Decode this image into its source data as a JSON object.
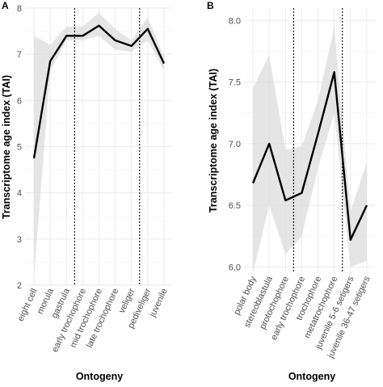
{
  "chart_data": [
    {
      "panel_label": "A",
      "type": "line",
      "xlabel": "Ontogeny",
      "ylabel": "Transcriptome age index (TAI)",
      "ylim": [
        2,
        8
      ],
      "yticks": [
        2,
        3,
        4,
        5,
        6,
        7,
        8
      ],
      "categories": [
        "eight cell",
        "morula",
        "gastrula",
        "early trochophore",
        "mid trochophore",
        "late trochophore",
        "veliger",
        "pediveliger",
        "juvenile"
      ],
      "values": [
        4.75,
        6.85,
        7.4,
        7.4,
        7.62,
        7.3,
        7.18,
        7.55,
        6.8
      ],
      "ribbon_lower": [
        2.15,
        6.65,
        7.3,
        7.3,
        7.4,
        7.1,
        7.05,
        7.3,
        6.65
      ],
      "ribbon_upper": [
        7.4,
        7.2,
        7.6,
        7.6,
        7.9,
        7.55,
        7.3,
        7.8,
        6.95
      ],
      "vlines_after_index": [
        2,
        6
      ],
      "grid": true
    },
    {
      "panel_label": "B",
      "type": "line",
      "xlabel": "Ontogeny",
      "ylabel": "Transcriptome age index (TAI)",
      "ylim": [
        5.95,
        8.1
      ],
      "yticks": [
        6.0,
        6.5,
        7.0,
        7.5,
        8.0
      ],
      "categories": [
        "polar body",
        "stereoblastula",
        "protochophore",
        "early trochophore",
        "trochophore",
        "metatrochophore",
        "juvenile 5-6 setigers",
        "juvenile 36-47 setigers"
      ],
      "values": [
        6.68,
        7.0,
        6.54,
        6.6,
        7.08,
        7.58,
        6.22,
        6.5
      ],
      "ribbon_lower": [
        5.95,
        6.5,
        6.1,
        6.25,
        6.8,
        7.25,
        6.0,
        6.05
      ],
      "ribbon_upper": [
        7.45,
        7.72,
        6.95,
        6.98,
        7.35,
        7.95,
        6.45,
        6.85
      ],
      "vlines_after_index": [
        2,
        5
      ],
      "grid": true
    }
  ]
}
